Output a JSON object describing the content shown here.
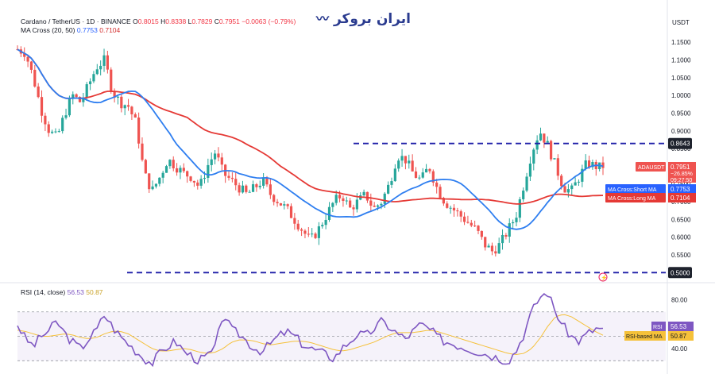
{
  "header": {
    "symbol_line": "Cardano / TetherUS · 1D · BINANCE",
    "o_label": "O",
    "o_value": "0.8015",
    "h_label": "H",
    "h_value": "0.8338",
    "l_label": "L",
    "l_value": "0.7829",
    "c_label": "C",
    "c_value": "0.7951",
    "change": "−0.0063 (−0.79%)",
    "ma_line": "MA Cross (20, 50)",
    "ma_short": "0.7753",
    "ma_long": "0.7104"
  },
  "logo_text": "ایران بروکر",
  "currency": "USDT",
  "rsi_header": {
    "label": "RSI (14, close)",
    "rsi": "56.53",
    "rsi_ma": "50.87"
  },
  "colors": {
    "up": "#26a69a",
    "down": "#ef5350",
    "ma_short": "#2e7ef0",
    "ma_long": "#e53935",
    "rsi": "#7e57c2",
    "rsi_ma": "#f5c13a",
    "dash": "#1e1ea8"
  },
  "chart_data": [
    {
      "type": "candlestick",
      "title": "Cardano / TetherUS · 1D · BINANCE",
      "y_ticks": [
        1.15,
        1.1,
        1.05,
        1.0,
        0.95,
        0.9,
        0.85,
        0.8,
        0.75,
        0.7,
        0.65,
        0.6,
        0.55,
        0.5
      ],
      "ylim": [
        0.485,
        1.175
      ],
      "close_path": [
        1.13,
        1.12,
        1.05,
        0.96,
        0.9,
        0.88,
        0.95,
        1.0,
        0.98,
        1.03,
        1.08,
        1.1,
        1.01,
        0.98,
        0.97,
        0.92,
        0.78,
        0.73,
        0.77,
        0.82,
        0.8,
        0.78,
        0.77,
        0.74,
        0.8,
        0.84,
        0.78,
        0.76,
        0.74,
        0.72,
        0.74,
        0.76,
        0.72,
        0.7,
        0.68,
        0.65,
        0.62,
        0.59,
        0.62,
        0.66,
        0.7,
        0.72,
        0.68,
        0.7,
        0.72,
        0.68,
        0.7,
        0.75,
        0.83,
        0.82,
        0.78,
        0.76,
        0.8,
        0.74,
        0.7,
        0.68,
        0.66,
        0.64,
        0.62,
        0.58,
        0.56,
        0.58,
        0.62,
        0.66,
        0.75,
        0.84,
        0.9,
        0.86,
        0.8,
        0.74,
        0.73,
        0.77,
        0.81,
        0.8,
        0.7951
      ],
      "candle_count": 170,
      "lines": [
        {
          "name": "MA Cross:Short MA",
          "last": 0.7753
        },
        {
          "name": "MA Cross:Long MA",
          "last": 0.7104
        }
      ],
      "levels": [
        0.8643,
        0.5
      ],
      "price_tags": [
        {
          "label": "ADAUSDT",
          "value": "0.7951",
          "sub1": "−26.85%",
          "sub2": "09:27:50",
          "price": 0.7951,
          "color": "#ef5350"
        },
        {
          "label": "MA Cross:Short MA",
          "value": "0.7753",
          "price": 0.7753,
          "color": "#2962ff"
        },
        {
          "label": "MA Cross:Long MA",
          "value": "0.7104",
          "price": 0.7104,
          "color": "#e53935"
        }
      ],
      "level_tags": [
        {
          "value": "0.8643",
          "price": 0.8643
        },
        {
          "value": "0.5000",
          "price": 0.5
        }
      ]
    },
    {
      "type": "line",
      "title": "RSI (14, close)",
      "y_ticks": [
        80.0,
        60.0,
        40.0
      ],
      "ylim": [
        25,
        88
      ],
      "band": [
        30,
        70
      ],
      "rsi_path": [
        60,
        48,
        42,
        50,
        55,
        62,
        52,
        45,
        40,
        48,
        55,
        68,
        58,
        50,
        44,
        38,
        32,
        28,
        36,
        42,
        46,
        38,
        34,
        30,
        34,
        40,
        70,
        55,
        52,
        46,
        40,
        38,
        44,
        50,
        54,
        50,
        44,
        40,
        38,
        35,
        32,
        40,
        46,
        52,
        50,
        56,
        62,
        58,
        52,
        48,
        54,
        60,
        56,
        50,
        46,
        44,
        42,
        40,
        38,
        36,
        34,
        32,
        30,
        38,
        52,
        70,
        82,
        86,
        70,
        58,
        50,
        46,
        52,
        56,
        56.53
      ],
      "ma_path": [
        55,
        54,
        52,
        50,
        50,
        51,
        52,
        51,
        49,
        48,
        49,
        52,
        54,
        54,
        52,
        48,
        44,
        40,
        38,
        38,
        39,
        40,
        39,
        37,
        36,
        37,
        40,
        45,
        47,
        47,
        46,
        44,
        43,
        44,
        45,
        46,
        46,
        45,
        43,
        41,
        39,
        38,
        39,
        41,
        43,
        45,
        48,
        51,
        53,
        53,
        53,
        54,
        55,
        54,
        52,
        50,
        48,
        46,
        44,
        42,
        40,
        38,
        36,
        35,
        36,
        40,
        48,
        58,
        66,
        68,
        66,
        62,
        58,
        54,
        50.87
      ],
      "series": [
        {
          "name": "RSI",
          "last": 56.53
        },
        {
          "name": "RSI-based MA",
          "last": 50.87
        }
      ],
      "tags": [
        {
          "label": "RSI",
          "value": "56.53",
          "color": "#7e57c2"
        },
        {
          "label": "RSI-based MA",
          "value": "50.87",
          "color": "#f5c13a"
        }
      ]
    }
  ]
}
